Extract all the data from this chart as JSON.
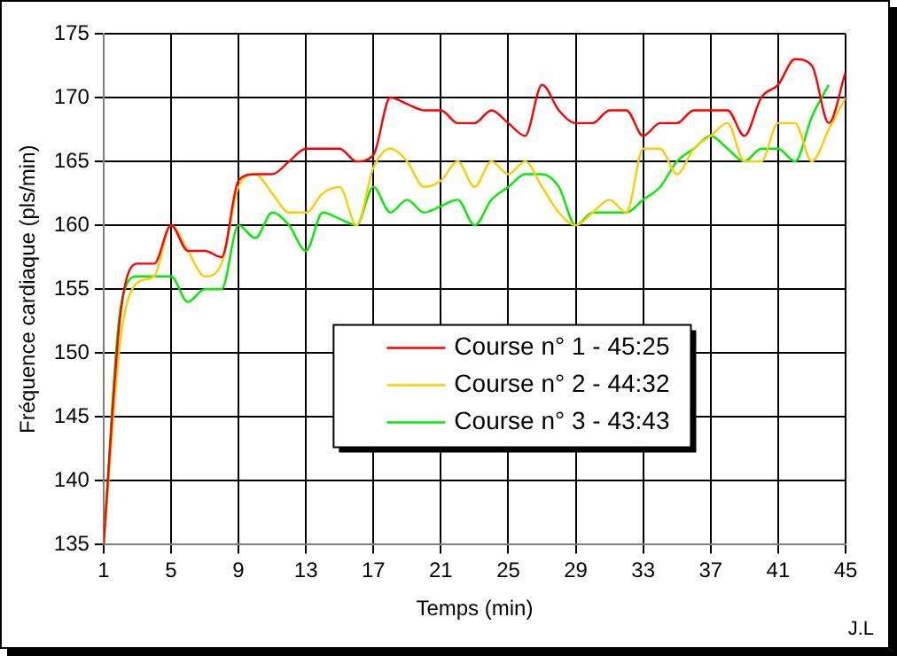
{
  "chart_data": {
    "type": "line",
    "xlabel": "Temps (min)",
    "ylabel": "Fréquence cardiaque (pls/min)",
    "annotations": [
      "J.L"
    ],
    "x": [
      1,
      2,
      3,
      4,
      5,
      6,
      7,
      8,
      9,
      10,
      11,
      12,
      13,
      14,
      15,
      16,
      17,
      18,
      19,
      20,
      21,
      22,
      23,
      24,
      25,
      26,
      27,
      28,
      29,
      30,
      31,
      32,
      33,
      34,
      35,
      36,
      37,
      38,
      39,
      40,
      41,
      42,
      43,
      44,
      45
    ],
    "series": [
      {
        "name": "Course n° 1 - 45:25",
        "color": "#ff0000",
        "values": [
          135,
          153,
          157,
          157,
          160,
          158,
          158,
          157.5,
          163.5,
          164,
          164,
          165,
          166,
          166,
          166,
          165,
          165.5,
          170,
          169.5,
          169,
          169,
          168,
          168,
          169,
          168,
          167,
          171,
          169,
          168,
          168,
          169,
          169,
          167,
          168,
          168,
          169,
          169,
          169,
          167,
          170,
          171,
          173,
          172.5,
          168,
          172
        ]
      },
      {
        "name": "Course n° 2 - 44:32",
        "color": "#ffcc00",
        "values": [
          135,
          151,
          155.5,
          156,
          160,
          158,
          156,
          157,
          163,
          164,
          162.5,
          161,
          161,
          162.5,
          163,
          160,
          164.5,
          166,
          165,
          163,
          163.5,
          165,
          163,
          165,
          164,
          165,
          163,
          161,
          160,
          161,
          162,
          161,
          166,
          166,
          164,
          166,
          167,
          168,
          165,
          165,
          168,
          168,
          165,
          167.5,
          170
        ]
      },
      {
        "name": "Course n° 3 - 43:43",
        "color": "#00ee00",
        "values": [
          135,
          153.5,
          156,
          156,
          156,
          154,
          155,
          155,
          160,
          159,
          161,
          160,
          158,
          161,
          160.5,
          160,
          163,
          161,
          162,
          161,
          161.5,
          162,
          160,
          162,
          163,
          164,
          164,
          163,
          160,
          161,
          161,
          161,
          162,
          163,
          165,
          166,
          167,
          166,
          165,
          166,
          166,
          165,
          168.5,
          171,
          null
        ]
      }
    ],
    "xlim": [
      1,
      45
    ],
    "xticks": [
      1,
      5,
      9,
      13,
      17,
      21,
      25,
      29,
      33,
      37,
      41,
      45
    ],
    "ylim": [
      135,
      175
    ],
    "yticks": [
      135,
      140,
      145,
      150,
      155,
      160,
      165,
      170,
      175
    ],
    "grid": true,
    "legend": "bottom right",
    "marker": "none",
    "line_style": "solid"
  }
}
